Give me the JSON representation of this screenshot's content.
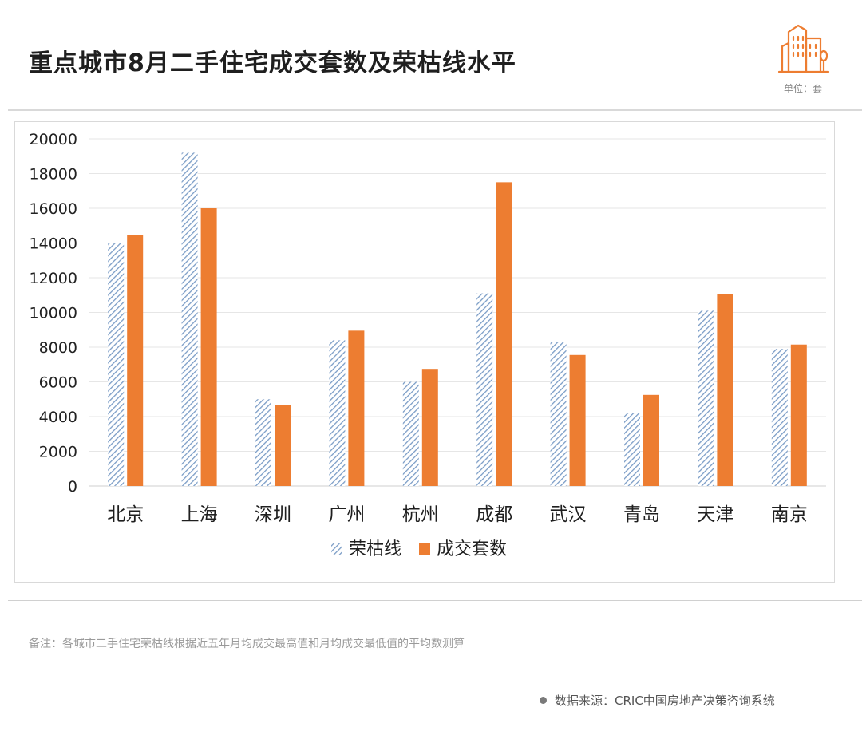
{
  "header": {
    "title": "重点城市8月二手住宅成交套数及荣枯线水平",
    "unit": "单位：套",
    "logo_icon": "building-icon"
  },
  "footer": {
    "note": "备注：各城市二手住宅荣枯线根据近五年月均成交最高值和月均成交最低值的平均数测算",
    "source": "数据来源：CRIC中国房地产决策咨询系统"
  },
  "colors": {
    "accent": "#ED7D31",
    "hatch": "#7A9CC6",
    "grid": "#e6e6e6",
    "axis": "#cfcfcf"
  },
  "chart_data": {
    "type": "bar",
    "title": "",
    "xlabel": "",
    "ylabel": "",
    "ylim": [
      0,
      20000
    ],
    "yticks": [
      0,
      2000,
      4000,
      6000,
      8000,
      10000,
      12000,
      14000,
      16000,
      18000,
      20000
    ],
    "grid": true,
    "legend": "bottom-center",
    "categories": [
      "北京",
      "上海",
      "深圳",
      "广州",
      "杭州",
      "成都",
      "武汉",
      "青岛",
      "天津",
      "南京"
    ],
    "series": [
      {
        "name": "荣枯线",
        "style": "hatched",
        "color": "#7A9CC6",
        "values": [
          14000,
          19200,
          5000,
          8400,
          6000,
          11100,
          8300,
          4200,
          10100,
          7900
        ]
      },
      {
        "name": "成交套数",
        "style": "solid",
        "color": "#ED7D31",
        "values": [
          14450,
          16000,
          4650,
          8950,
          6750,
          17500,
          7550,
          5250,
          11050,
          8150
        ]
      }
    ]
  }
}
